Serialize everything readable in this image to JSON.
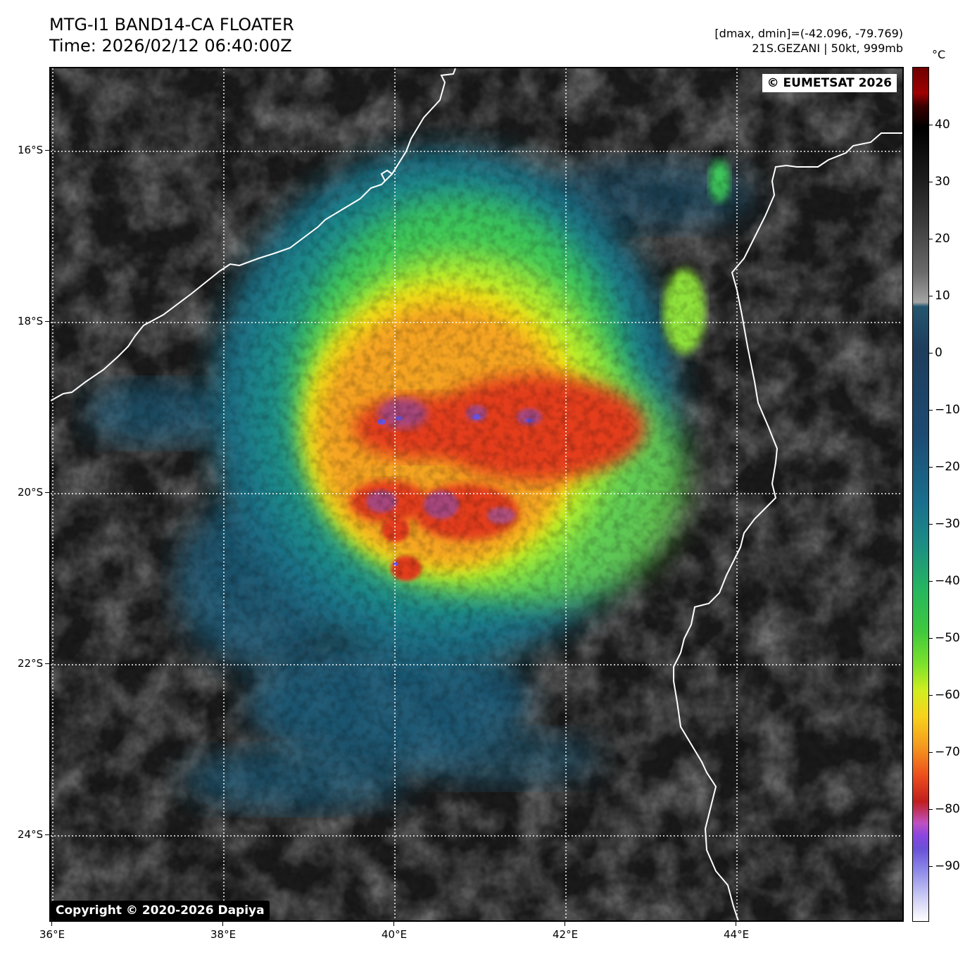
{
  "header": {
    "title_line1": "MTG-I1 BAND14-CA FLOATER",
    "title_line2": "Time: 2026/02/12 06:40:00Z",
    "range_info": "[dmax, dmin]=(-42.096, -79.769)",
    "storm_info": "21S.GEZANI | 50kt, 999mb"
  },
  "map": {
    "credit": "© EUMETSAT 2026",
    "copyright": "Copyright © 2020-2026 Dapiya",
    "lon_labels": [
      "36°E",
      "38°E",
      "40°E",
      "42°E",
      "44°E"
    ],
    "lat_labels": [
      "16°S",
      "18°S",
      "20°S",
      "22°S",
      "24°S"
    ],
    "coastline_color": "#ffffff",
    "gridline_color": "#ffffff",
    "gridline_style": "dotted"
  },
  "colorbar": {
    "unit": "°C",
    "tick_labels": [
      "40",
      "30",
      "20",
      "10",
      "0",
      "−10",
      "−20",
      "−30",
      "−40",
      "−50",
      "−60",
      "−70",
      "−80",
      "−90"
    ],
    "tick_values": [
      40,
      30,
      20,
      10,
      0,
      -10,
      -20,
      -30,
      -40,
      -50,
      -60,
      -70,
      -80,
      -90
    ],
    "range": [
      -100,
      50
    ]
  }
}
